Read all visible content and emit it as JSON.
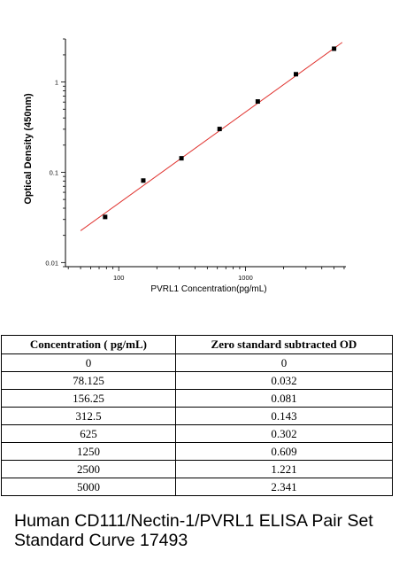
{
  "chart_data": {
    "type": "scatter",
    "xscale": "log",
    "yscale": "log",
    "xlim": [
      38,
      6200
    ],
    "ylim": [
      0.009,
      3
    ],
    "xlabel": "PVRL1  Concentration(pg/mL)",
    "ylabel": "Optical Density (450nm)",
    "xticks": [
      {
        "value": 100,
        "label": "100"
      },
      {
        "value": 1000,
        "label": "1000"
      }
    ],
    "yticks": [
      {
        "value": 0.01,
        "label": "0.01"
      },
      {
        "value": 0.1,
        "label": "0.1"
      },
      {
        "value": 1,
        "label": "1"
      }
    ],
    "points": [
      {
        "x": 78.125,
        "y": 0.032
      },
      {
        "x": 156.25,
        "y": 0.081
      },
      {
        "x": 312.5,
        "y": 0.143
      },
      {
        "x": 625,
        "y": 0.302
      },
      {
        "x": 1250,
        "y": 0.609
      },
      {
        "x": 2500,
        "y": 1.221
      },
      {
        "x": 5000,
        "y": 2.341
      }
    ],
    "fit_line": {
      "x": [
        50,
        5800
      ],
      "y": [
        0.0225,
        2.75
      ],
      "color": "#e0332f"
    },
    "marker_color": "#000000",
    "grid": false
  },
  "table": {
    "headers": [
      "Concentration ( pg/mL)",
      "Zero standard subtracted OD"
    ],
    "rows": [
      [
        "0",
        "0"
      ],
      [
        "78.125",
        "0.032"
      ],
      [
        "156.25",
        "0.081"
      ],
      [
        "312.5",
        "0.143"
      ],
      [
        "625",
        "0.302"
      ],
      [
        "1250",
        "0.609"
      ],
      [
        "2500",
        "1.221"
      ],
      [
        "5000",
        "2.341"
      ]
    ]
  },
  "caption": "Human CD111/Nectin-1/PVRL1 ELISA Pair Set Standard Curve 17493"
}
